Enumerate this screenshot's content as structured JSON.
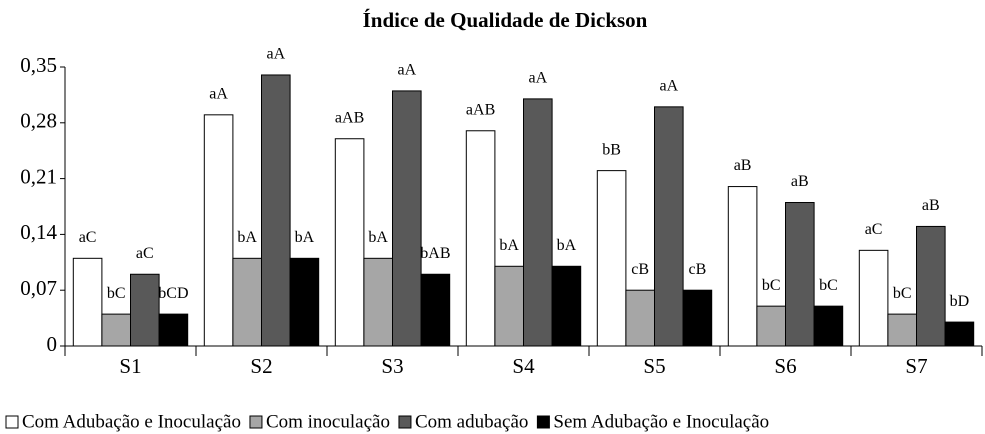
{
  "chart_data": {
    "type": "bar",
    "title": "Índice de Qualidade de Dickson",
    "categories": [
      "S1",
      "S2",
      "S3",
      "S4",
      "S5",
      "S6",
      "S7"
    ],
    "series": [
      {
        "name": "Com Adubação e Inoculação",
        "color": "#ffffff",
        "values": [
          0.11,
          0.29,
          0.26,
          0.27,
          0.22,
          0.2,
          0.12
        ],
        "value_labels": [
          "aC",
          "aA",
          "aAB",
          "aAB",
          "bB",
          "aB",
          "aC"
        ]
      },
      {
        "name": "Com inoculação",
        "color": "#a6a6a6",
        "values": [
          0.04,
          0.11,
          0.11,
          0.1,
          0.07,
          0.05,
          0.04
        ],
        "value_labels": [
          "bC",
          "bA",
          "bA",
          "bA",
          "cB",
          "bC",
          "bC"
        ]
      },
      {
        "name": "Com adubação",
        "color": "#595959",
        "values": [
          0.09,
          0.34,
          0.32,
          0.31,
          0.3,
          0.18,
          0.15
        ],
        "value_labels": [
          "aC",
          "aA",
          "aA",
          "aA",
          "aA",
          "aB",
          "aB"
        ]
      },
      {
        "name": "Sem Adubação e Inoculação",
        "color": "#000000",
        "values": [
          0.04,
          0.11,
          0.09,
          0.1,
          0.07,
          0.05,
          0.03
        ],
        "value_labels": [
          "bCD",
          "bA",
          "bAB",
          "bA",
          "cB",
          "bC",
          "bD"
        ]
      }
    ],
    "ylim": [
      0,
      0.35
    ],
    "yticks": [
      0,
      {
        "value": 0.07,
        "label": "0,07"
      },
      {
        "value": 0.14,
        "label": "0,14"
      },
      {
        "value": 0.21,
        "label": "0,21"
      },
      {
        "value": 0.28,
        "label": "0,28"
      },
      {
        "value": 0.35,
        "label": "0,35"
      }
    ],
    "legend": "bottom"
  }
}
